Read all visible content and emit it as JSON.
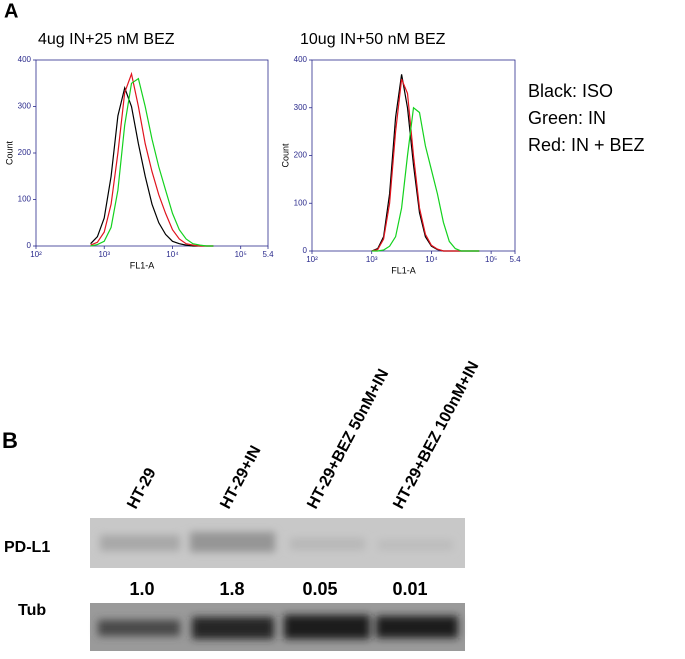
{
  "panel_a": {
    "label": "A",
    "legend": [
      "Black: ISO",
      "Green: IN",
      "Red: IN + BEZ"
    ]
  },
  "chart_data": [
    {
      "type": "line",
      "title": "4ug IN+25 nM BEZ",
      "xlabel": "FL1-A",
      "ylabel": "Count",
      "x": [
        2.8,
        2.9,
        3.0,
        3.1,
        3.2,
        3.3,
        3.4,
        3.5,
        3.6,
        3.7,
        3.8,
        3.9,
        4.0,
        4.1,
        4.2,
        4.3,
        4.4,
        4.5,
        4.6
      ],
      "xlim": [
        2,
        5.4
      ],
      "ylim": [
        0,
        400
      ],
      "yticks": [
        0,
        100,
        200,
        300,
        400
      ],
      "xticks": [
        {
          "value": 2,
          "label": "10²"
        },
        {
          "value": 3,
          "label": "10³"
        },
        {
          "value": 4,
          "label": "10⁴"
        },
        {
          "value": 5,
          "label": "10⁵"
        },
        {
          "value": 5.4,
          "label": "5.4"
        }
      ],
      "series": [
        {
          "color": "#000000",
          "values": [
            5,
            20,
            60,
            150,
            280,
            340,
            300,
            220,
            150,
            90,
            50,
            25,
            10,
            5,
            2,
            0,
            0,
            0,
            0
          ]
        },
        {
          "color": "#e0141e",
          "values": [
            2,
            8,
            30,
            90,
            200,
            330,
            370,
            300,
            220,
            160,
            110,
            70,
            35,
            15,
            5,
            2,
            0,
            0,
            0
          ]
        },
        {
          "color": "#14d21e",
          "values": [
            0,
            3,
            10,
            40,
            120,
            260,
            350,
            360,
            300,
            230,
            170,
            120,
            70,
            35,
            15,
            5,
            2,
            0,
            0
          ]
        }
      ]
    },
    {
      "type": "line",
      "title": "10ug IN+50 nM BEZ",
      "xlabel": "FL1-A",
      "ylabel": "Count",
      "x": [
        3.0,
        3.1,
        3.2,
        3.3,
        3.4,
        3.5,
        3.6,
        3.7,
        3.8,
        3.9,
        4.0,
        4.1,
        4.2,
        4.3,
        4.4,
        4.5,
        4.6,
        4.7,
        4.8
      ],
      "xlim": [
        2,
        5.4
      ],
      "ylim": [
        0,
        400
      ],
      "yticks": [
        0,
        100,
        200,
        300,
        400
      ],
      "xticks": [
        {
          "value": 2,
          "label": "10²"
        },
        {
          "value": 3,
          "label": "10³"
        },
        {
          "value": 4,
          "label": "10⁴"
        },
        {
          "value": 5,
          "label": "10⁵"
        },
        {
          "value": 5.4,
          "label": "5.4"
        }
      ],
      "series": [
        {
          "color": "#000000",
          "values": [
            0,
            5,
            30,
            120,
            280,
            370,
            300,
            180,
            80,
            30,
            10,
            3,
            0,
            0,
            0,
            0,
            0,
            0,
            0
          ]
        },
        {
          "color": "#e0141e",
          "values": [
            0,
            3,
            25,
            100,
            250,
            360,
            330,
            200,
            90,
            35,
            12,
            4,
            0,
            0,
            0,
            0,
            0,
            0,
            0
          ]
        },
        {
          "color": "#14d21e",
          "values": [
            0,
            0,
            2,
            10,
            30,
            90,
            200,
            300,
            290,
            220,
            170,
            120,
            60,
            20,
            5,
            0,
            0,
            0,
            0
          ]
        }
      ]
    }
  ],
  "panel_b": {
    "label": "B",
    "lanes": [
      "HT-29",
      "HT-29+IN",
      "HT-29+BEZ 50nM+IN",
      "HT-29+BEZ 100nM+IN"
    ],
    "rows": [
      "PD-L1",
      "Tub"
    ],
    "quantification": [
      "1.0",
      "1.8",
      "0.05",
      "0.01"
    ]
  }
}
